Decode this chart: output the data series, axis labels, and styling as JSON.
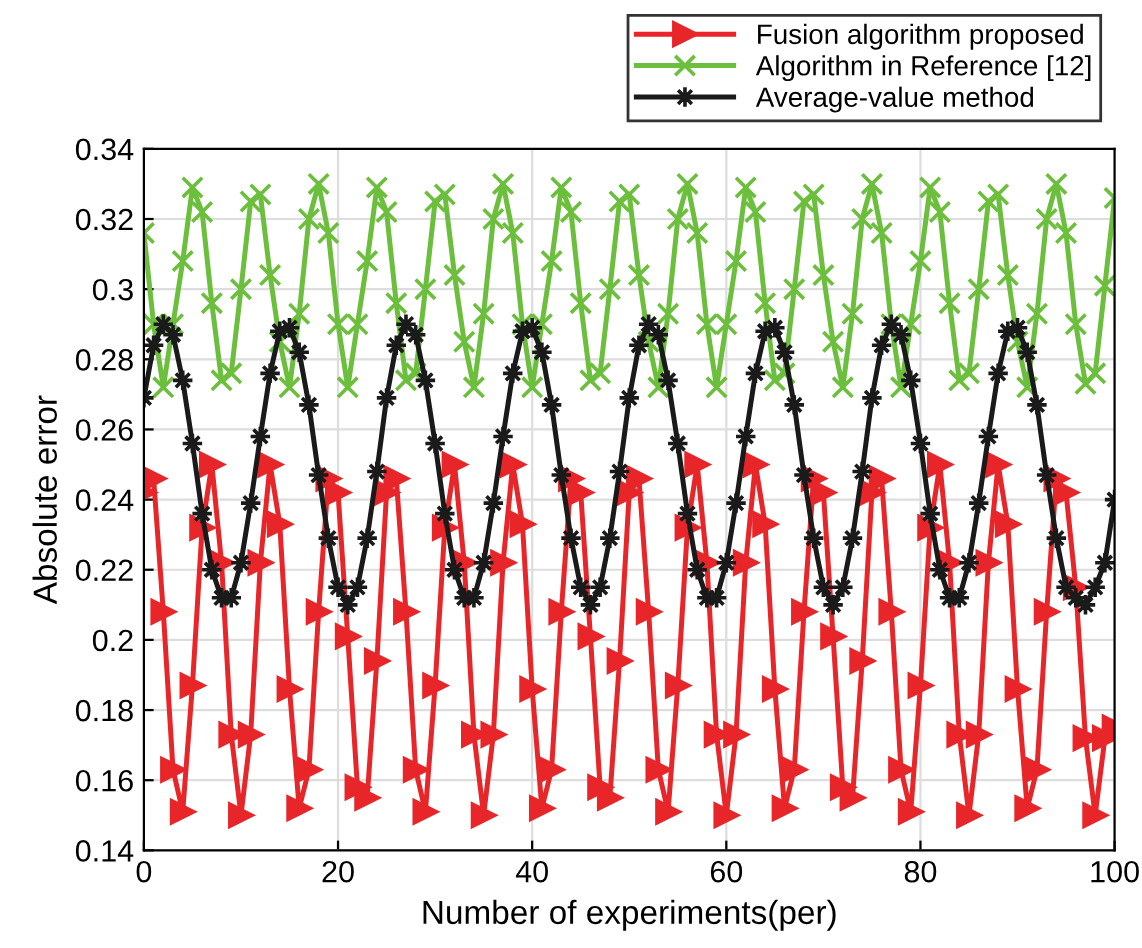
{
  "chart_data": {
    "type": "line",
    "xlabel": "Number of experiments(per)",
    "ylabel": "Absolute error",
    "xlim": [
      0,
      100
    ],
    "ylim": [
      0.14,
      0.34
    ],
    "xticks": [
      0,
      20,
      40,
      60,
      80,
      100
    ],
    "yticks": [
      0.14,
      0.16,
      0.18,
      0.2,
      0.22,
      0.24,
      0.26,
      0.28,
      0.3,
      0.32,
      0.34
    ],
    "grid": true,
    "legend": "top right",
    "line_style": "solid",
    "x": [
      0,
      1,
      2,
      3,
      4,
      5,
      6,
      7,
      8,
      9,
      10,
      11,
      12,
      13,
      14,
      15,
      16,
      17,
      18,
      19,
      20,
      21,
      22,
      23,
      24,
      25,
      26,
      27,
      28,
      29,
      30,
      31,
      32,
      33,
      34,
      35,
      36,
      37,
      38,
      39,
      40,
      41,
      42,
      43,
      44,
      45,
      46,
      47,
      48,
      49,
      50,
      51,
      52,
      53,
      54,
      55,
      56,
      57,
      58,
      59,
      60,
      61,
      62,
      63,
      64,
      65,
      66,
      67,
      68,
      69,
      70,
      71,
      72,
      73,
      74,
      75,
      76,
      77,
      78,
      79,
      80,
      81,
      82,
      83,
      84,
      85,
      86,
      87,
      88,
      89,
      90,
      91,
      92,
      93,
      94,
      95,
      96,
      97,
      98,
      99,
      100
    ],
    "series": [
      {
        "name": "Fusion algorithm proposed",
        "color": "#e8262a",
        "marker": "triangle",
        "values": [
          0.242,
          0.246,
          0.208,
          0.163,
          0.151,
          0.187,
          0.232,
          0.25,
          0.222,
          0.173,
          0.15,
          0.173,
          0.222,
          0.25,
          0.233,
          0.186,
          0.152,
          0.163,
          0.208,
          0.246,
          0.242,
          0.201,
          0.158,
          0.155,
          0.194,
          0.242,
          0.246,
          0.208,
          0.163,
          0.151,
          0.187,
          0.232,
          0.25,
          0.222,
          0.173,
          0.15,
          0.173,
          0.222,
          0.25,
          0.233,
          0.186,
          0.152,
          0.163,
          0.208,
          0.246,
          0.242,
          0.201,
          0.158,
          0.155,
          0.194,
          0.242,
          0.246,
          0.208,
          0.163,
          0.151,
          0.187,
          0.232,
          0.25,
          0.222,
          0.173,
          0.15,
          0.173,
          0.222,
          0.25,
          0.233,
          0.186,
          0.152,
          0.163,
          0.208,
          0.246,
          0.242,
          0.201,
          0.158,
          0.155,
          0.194,
          0.242,
          0.246,
          0.208,
          0.163,
          0.151,
          0.187,
          0.232,
          0.25,
          0.222,
          0.173,
          0.15,
          0.173,
          0.222,
          0.25,
          0.233,
          0.186,
          0.152,
          0.163,
          0.208,
          0.246,
          0.242,
          0.215,
          0.172,
          0.15,
          0.172,
          0.175
        ]
      },
      {
        "name": "Algorithm in Reference [12]",
        "color": "#6cbf3c",
        "marker": "cross",
        "values": [
          0.316,
          0.29,
          0.272,
          0.29,
          0.308,
          0.329,
          0.322,
          0.296,
          0.274,
          0.276,
          0.3,
          0.325,
          0.327,
          0.304,
          0.285,
          0.272,
          0.293,
          0.32,
          0.33,
          0.316,
          0.29,
          0.272,
          0.29,
          0.308,
          0.329,
          0.322,
          0.296,
          0.274,
          0.276,
          0.3,
          0.325,
          0.327,
          0.304,
          0.285,
          0.272,
          0.293,
          0.32,
          0.33,
          0.316,
          0.29,
          0.272,
          0.29,
          0.308,
          0.329,
          0.322,
          0.296,
          0.274,
          0.276,
          0.3,
          0.325,
          0.327,
          0.304,
          0.285,
          0.272,
          0.293,
          0.32,
          0.33,
          0.316,
          0.29,
          0.272,
          0.29,
          0.308,
          0.329,
          0.322,
          0.296,
          0.274,
          0.276,
          0.3,
          0.325,
          0.327,
          0.304,
          0.285,
          0.272,
          0.293,
          0.32,
          0.33,
          0.316,
          0.29,
          0.272,
          0.29,
          0.308,
          0.329,
          0.322,
          0.296,
          0.274,
          0.276,
          0.3,
          0.325,
          0.327,
          0.304,
          0.285,
          0.272,
          0.293,
          0.32,
          0.33,
          0.316,
          0.29,
          0.273,
          0.276,
          0.301,
          0.326
        ]
      },
      {
        "name": "Average-value method",
        "color": "#1a1a1a",
        "marker": "star",
        "values": [
          0.269,
          0.284,
          0.29,
          0.287,
          0.274,
          0.256,
          0.236,
          0.22,
          0.212,
          0.212,
          0.222,
          0.239,
          0.258,
          0.276,
          0.288,
          0.289,
          0.282,
          0.267,
          0.247,
          0.229,
          0.215,
          0.21,
          0.215,
          0.229,
          0.248,
          0.269,
          0.284,
          0.29,
          0.287,
          0.274,
          0.256,
          0.236,
          0.22,
          0.212,
          0.212,
          0.222,
          0.239,
          0.258,
          0.276,
          0.288,
          0.289,
          0.282,
          0.267,
          0.247,
          0.229,
          0.215,
          0.21,
          0.215,
          0.229,
          0.248,
          0.269,
          0.284,
          0.29,
          0.287,
          0.274,
          0.256,
          0.236,
          0.22,
          0.212,
          0.212,
          0.222,
          0.239,
          0.258,
          0.276,
          0.288,
          0.289,
          0.282,
          0.267,
          0.247,
          0.229,
          0.215,
          0.21,
          0.215,
          0.229,
          0.248,
          0.269,
          0.284,
          0.29,
          0.287,
          0.274,
          0.256,
          0.236,
          0.22,
          0.212,
          0.212,
          0.222,
          0.239,
          0.258,
          0.276,
          0.288,
          0.289,
          0.282,
          0.267,
          0.247,
          0.229,
          0.215,
          0.212,
          0.21,
          0.215,
          0.222,
          0.24
        ]
      }
    ]
  }
}
